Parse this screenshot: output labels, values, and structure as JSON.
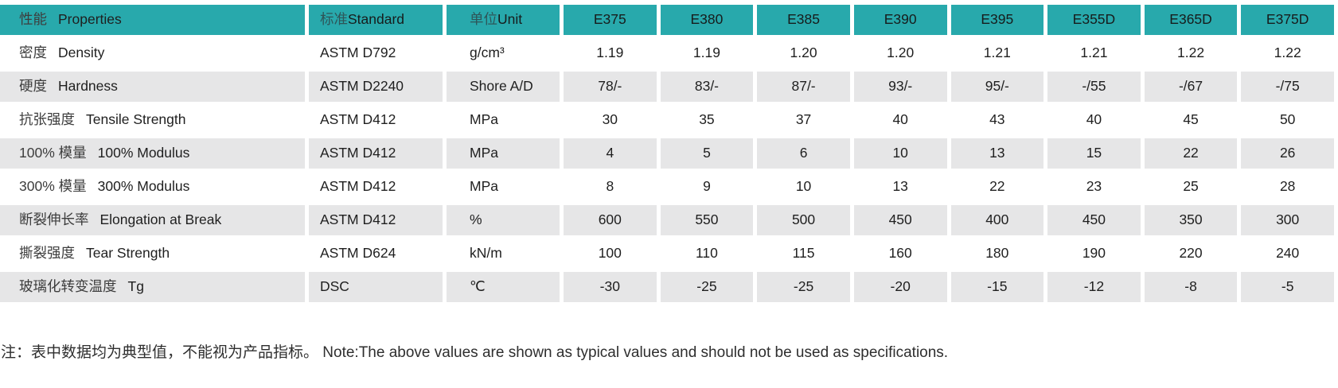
{
  "colors": {
    "header_bg": "#28a9ac",
    "row_alt_bg": "#e6e6e7",
    "row_bg": "#ffffff",
    "text": "#1f1f1f"
  },
  "table": {
    "header": {
      "properties": {
        "zh": "性能",
        "en": "Properties"
      },
      "standard": {
        "zh": "标准",
        "en": "Standard"
      },
      "unit": {
        "zh": "单位",
        "en": "Unit"
      },
      "models": [
        "E375",
        "E380",
        "E385",
        "E390",
        "E395",
        "E355D",
        "E365D",
        "E375D"
      ]
    },
    "rows": [
      {
        "zh": "密度",
        "en": "Density",
        "standard": "ASTM D792",
        "unit": "g/cm³",
        "values": [
          "1.19",
          "1.19",
          "1.20",
          "1.20",
          "1.21",
          "1.21",
          "1.22",
          "1.22"
        ]
      },
      {
        "zh": "硬度",
        "en": "Hardness",
        "standard": "ASTM D2240",
        "unit": "Shore A/D",
        "values": [
          "78/-",
          "83/-",
          "87/-",
          "93/-",
          "95/-",
          "-/55",
          "-/67",
          "-/75"
        ]
      },
      {
        "zh": "抗张强度",
        "en": "Tensile Strength",
        "standard": "ASTM D412",
        "unit": "MPa",
        "values": [
          "30",
          "35",
          "37",
          "40",
          "43",
          "40",
          "45",
          "50"
        ]
      },
      {
        "zh": "100% 模量",
        "en": "100% Modulus",
        "standard": "ASTM D412",
        "unit": "MPa",
        "values": [
          "4",
          "5",
          "6",
          "10",
          "13",
          "15",
          "22",
          "26"
        ]
      },
      {
        "zh": "300% 模量",
        "en": "300% Modulus",
        "standard": "ASTM D412",
        "unit": "MPa",
        "values": [
          "8",
          "9",
          "10",
          "13",
          "22",
          "23",
          "25",
          "28"
        ]
      },
      {
        "zh": "断裂伸长率",
        "en": "Elongation at Break",
        "standard": "ASTM D412",
        "unit": "%",
        "values": [
          "600",
          "550",
          "500",
          "450",
          "400",
          "450",
          "350",
          "300"
        ]
      },
      {
        "zh": "撕裂强度",
        "en": "Tear Strength",
        "standard": "ASTM D624",
        "unit": "kN/m",
        "values": [
          "100",
          "110",
          "115",
          "160",
          "180",
          "190",
          "220",
          "240"
        ]
      },
      {
        "zh": "玻璃化转变温度",
        "en": "Tg",
        "standard": "DSC",
        "unit": "℃",
        "values": [
          "-30",
          "-25",
          "-25",
          "-20",
          "-15",
          "-12",
          "-8",
          "-5"
        ]
      }
    ]
  },
  "note": "注：表中数据均为典型值，不能视为产品指标。 Note:The above values are shown as typical values and should not be used as specifications."
}
